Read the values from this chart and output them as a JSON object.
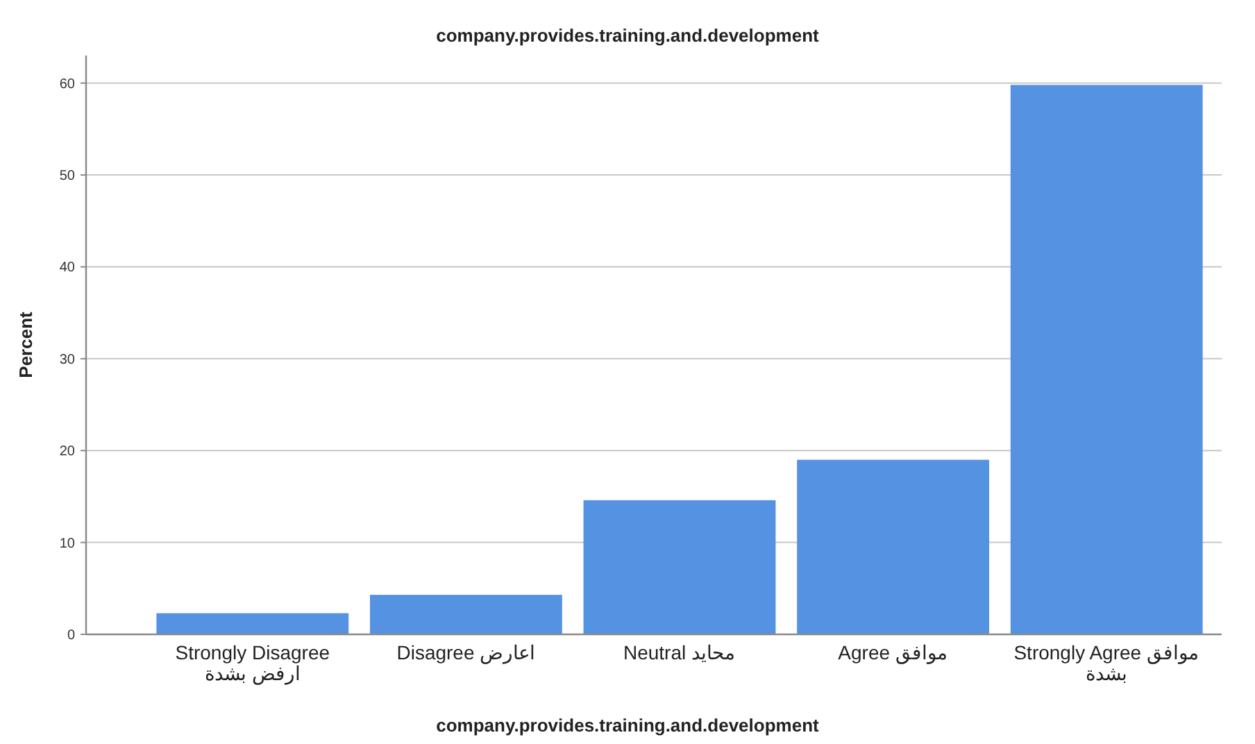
{
  "chart_data": {
    "type": "bar",
    "title": "company.provides.training.and.development",
    "xlabel": "company.provides.training.and.development",
    "ylabel": "Percent",
    "categories": [
      "Strongly Disagree ارفض بشدة",
      "Disagree اعارض",
      "Neutral محايد",
      "Agree موافق",
      "Strongly Agree موافق بشدة"
    ],
    "values": [
      2.3,
      4.3,
      14.6,
      19.0,
      59.8
    ],
    "color": "#5592e2",
    "ylim": [
      0,
      63
    ],
    "yticks": [
      0,
      10,
      20,
      30,
      40,
      50,
      60
    ],
    "grid": "y"
  }
}
